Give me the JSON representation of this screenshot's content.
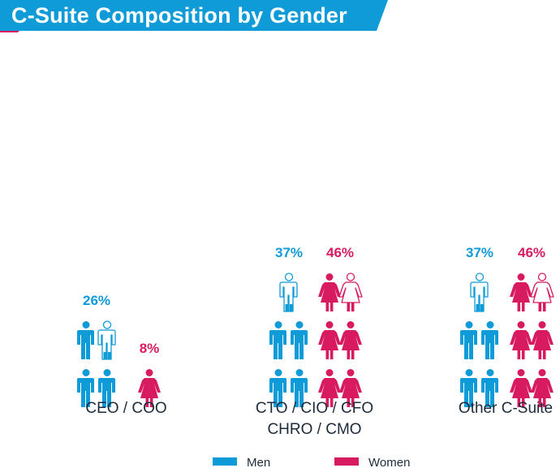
{
  "title": "C-Suite Composition by Gender",
  "colors": {
    "men": "#0f9ad8",
    "women": "#d81b60",
    "banner": "#0f9ad8",
    "banner_tail": "#d81b60"
  },
  "chart_data": {
    "type": "bar",
    "title": "C-Suite Composition by Gender",
    "categories": [
      "CEO / COO",
      "CTO / CIO / CFO\nCHRO / CMO",
      "Other C-Suite"
    ],
    "series": [
      {
        "name": "Men",
        "values": [
          26,
          37,
          37
        ],
        "labels": [
          "26%",
          "37%",
          "37%"
        ]
      },
      {
        "name": "Women",
        "values": [
          8,
          46,
          46
        ],
        "labels": [
          "8%",
          "46%",
          "46%"
        ]
      }
    ],
    "unit": "%",
    "legend": {
      "position": "bottom",
      "entries": [
        "Men",
        "Women"
      ]
    }
  }
}
